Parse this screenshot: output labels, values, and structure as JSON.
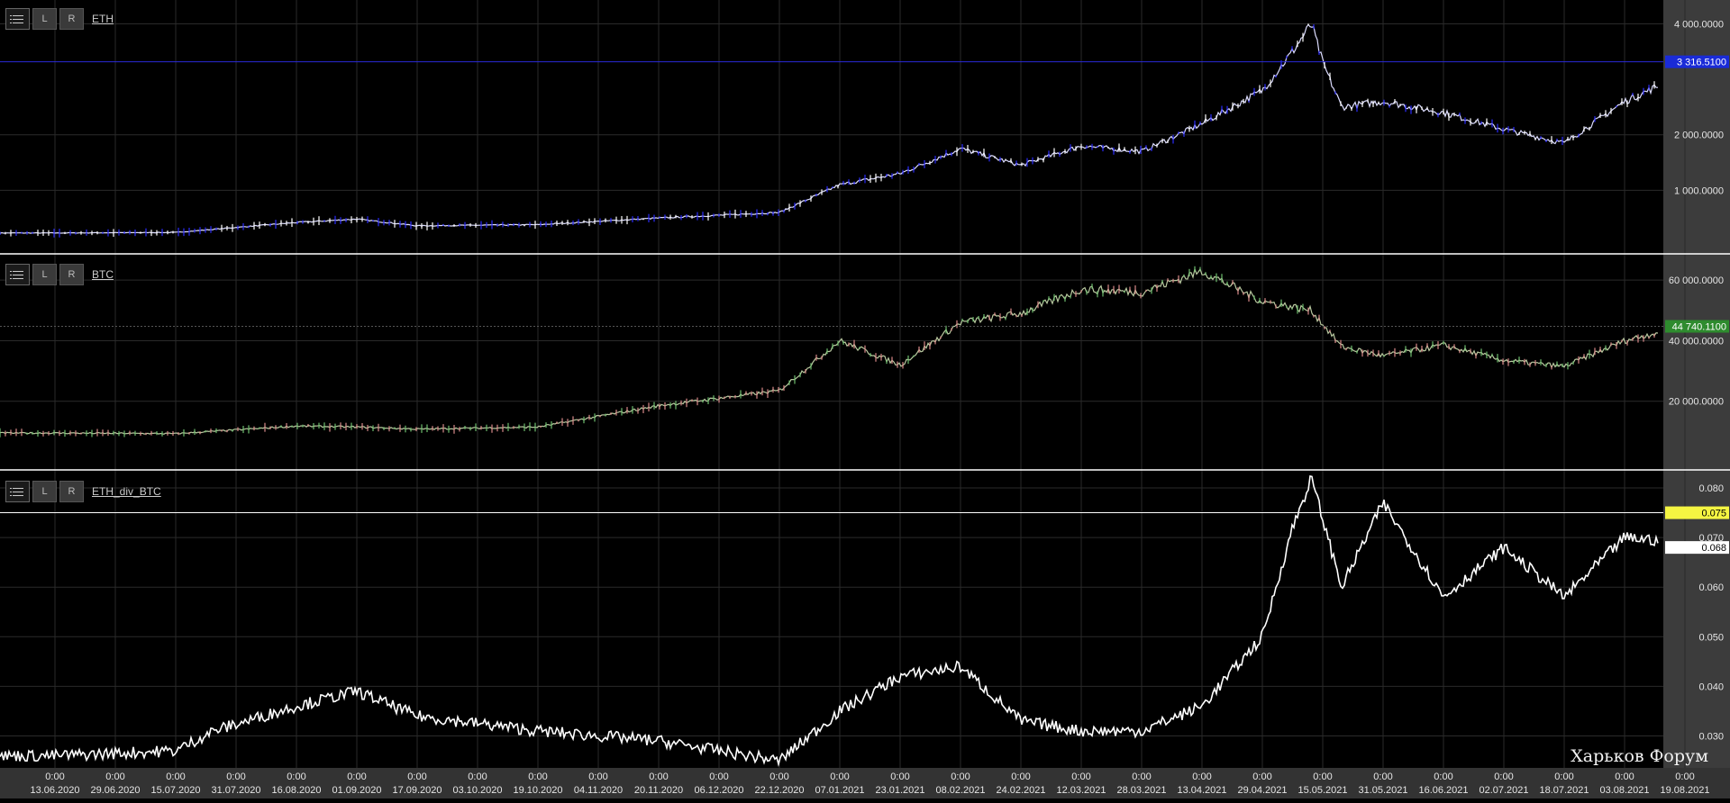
{
  "panels": [
    {
      "id": "eth",
      "symbol": "ETH",
      "btn_l": "L",
      "btn_r": "R",
      "price_label": "3 316.5100",
      "price_label_bg": "#1a2bd8",
      "price_label_fg": "#ffffff",
      "yticks": [
        {
          "v": 1000,
          "label": "1 000.0000"
        },
        {
          "v": 2000,
          "label": "2 000.0000"
        },
        {
          "v": 4000,
          "label": "4 000.0000"
        }
      ]
    },
    {
      "id": "btc",
      "symbol": "BTC",
      "btn_l": "L",
      "btn_r": "R",
      "price_label": "44 740.1100",
      "price_label_bg": "#2e8b2e",
      "price_label_fg": "#ffffff",
      "yticks": [
        {
          "v": 20000,
          "label": "20 000.0000"
        },
        {
          "v": 40000,
          "label": "40 000.0000"
        },
        {
          "v": 60000,
          "label": "60 000.0000"
        }
      ]
    },
    {
      "id": "ratio",
      "symbol": "ETH_div_BTC",
      "btn_l": "L",
      "btn_r": "R",
      "price_label": "0.068",
      "price_label_bg": "#ffffff",
      "price_label_fg": "#000000",
      "hline_label": "0.075",
      "hline_label_bg": "#f5f542",
      "hline_label_fg": "#000000",
      "yticks": [
        {
          "v": 0.03,
          "label": "0.030"
        },
        {
          "v": 0.04,
          "label": "0.040"
        },
        {
          "v": 0.05,
          "label": "0.050"
        },
        {
          "v": 0.06,
          "label": "0.060"
        },
        {
          "v": 0.07,
          "label": "0.070"
        },
        {
          "v": 0.08,
          "label": "0.080"
        }
      ]
    }
  ],
  "watermark": "Харьков Форум",
  "colors": {
    "eth_candle": "#2d2dff",
    "btc_up": "#6fbf6f",
    "btc_down": "#d88a8a",
    "line": "#ffffff"
  },
  "chart_data": [
    {
      "type": "line",
      "name": "ETH",
      "x": [
        "2020-06-13",
        "2020-07-15",
        "2020-08-16",
        "2020-09-01",
        "2020-09-17",
        "2020-10-19",
        "2020-11-20",
        "2020-12-22",
        "2021-01-07",
        "2021-01-23",
        "2021-02-08",
        "2021-02-24",
        "2021-03-12",
        "2021-03-28",
        "2021-04-13",
        "2021-04-29",
        "2021-05-07",
        "2021-05-12",
        "2021-05-15",
        "2021-05-20",
        "2021-05-31",
        "2021-06-16",
        "2021-07-02",
        "2021-07-18",
        "2021-08-03",
        "2021-08-19"
      ],
      "y": [
        230,
        240,
        420,
        480,
        360,
        380,
        500,
        600,
        1100,
        1300,
        1750,
        1450,
        1800,
        1700,
        2200,
        2800,
        3500,
        4000,
        3300,
        2500,
        2600,
        2400,
        2100,
        1850,
        2600,
        3100
      ],
      "ylim": [
        0,
        4300
      ]
    },
    {
      "type": "line",
      "name": "BTC",
      "x": [
        "2020-06-13",
        "2020-07-15",
        "2020-08-16",
        "2020-09-01",
        "2020-09-17",
        "2020-10-19",
        "2020-11-20",
        "2020-12-22",
        "2021-01-07",
        "2021-01-23",
        "2021-02-08",
        "2021-02-24",
        "2021-03-12",
        "2021-03-28",
        "2021-04-13",
        "2021-04-29",
        "2021-05-12",
        "2021-05-20",
        "2021-05-31",
        "2021-06-16",
        "2021-07-02",
        "2021-07-18",
        "2021-08-03",
        "2021-08-19"
      ],
      "y": [
        9500,
        9300,
        11800,
        11500,
        10800,
        11500,
        18500,
        23500,
        40000,
        32000,
        46000,
        49000,
        57000,
        56000,
        63000,
        53000,
        50000,
        38000,
        35000,
        38500,
        33500,
        31500,
        40000,
        45000
      ],
      "ylim": [
        0,
        66000
      ]
    },
    {
      "type": "line",
      "name": "ETH_div_BTC",
      "x": [
        "2020-06-13",
        "2020-07-15",
        "2020-07-25",
        "2020-08-16",
        "2020-09-01",
        "2020-09-17",
        "2020-10-19",
        "2020-11-20",
        "2020-12-22",
        "2021-01-07",
        "2021-01-23",
        "2021-02-08",
        "2021-02-24",
        "2021-03-12",
        "2021-03-28",
        "2021-04-13",
        "2021-04-29",
        "2021-05-07",
        "2021-05-12",
        "2021-05-20",
        "2021-05-31",
        "2021-06-16",
        "2021-07-02",
        "2021-07-18",
        "2021-08-03",
        "2021-08-19"
      ],
      "y": [
        0.026,
        0.027,
        0.031,
        0.036,
        0.039,
        0.034,
        0.031,
        0.029,
        0.025,
        0.035,
        0.042,
        0.044,
        0.033,
        0.031,
        0.031,
        0.036,
        0.05,
        0.072,
        0.082,
        0.06,
        0.077,
        0.058,
        0.068,
        0.058,
        0.07,
        0.069
      ],
      "ylim": [
        0.025,
        0.082
      ]
    }
  ],
  "xaxis": {
    "time_label": "0:00",
    "dates": [
      "13.06.2020",
      "29.06.2020",
      "15.07.2020",
      "31.07.2020",
      "16.08.2020",
      "01.09.2020",
      "17.09.2020",
      "03.10.2020",
      "19.10.2020",
      "04.11.2020",
      "20.11.2020",
      "06.12.2020",
      "22.12.2020",
      "07.01.2021",
      "23.01.2021",
      "08.02.2021",
      "24.02.2021",
      "12.03.2021",
      "28.03.2021",
      "13.04.2021",
      "29.04.2021",
      "15.05.2021",
      "31.05.2021",
      "16.06.2021",
      "02.07.2021",
      "18.07.2021",
      "03.08.2021",
      "19.08.2021"
    ]
  }
}
